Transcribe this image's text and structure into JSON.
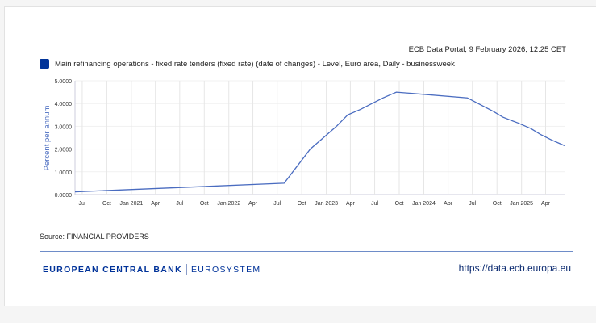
{
  "header": {
    "timestamp": "ECB Data Portal, 9 February 2026, 12:25 CET"
  },
  "colors": {
    "series": "#4a6cc0",
    "legend_swatch": "#003399",
    "brand": "#003299"
  },
  "chart_data": {
    "type": "line",
    "title": "",
    "xlabel": "",
    "ylabel": "Percent per annum",
    "legend_position": "top-left",
    "grid": {
      "vertical": true,
      "horizontal": true
    },
    "ylim": [
      0,
      5
    ],
    "xlim": [
      "2020-06-04",
      "2025-06-11"
    ],
    "y_ticks": [
      "0.0000",
      "1.0000",
      "2.0000",
      "3.0000",
      "4.0000",
      "5.0000"
    ],
    "x_ticks": [
      {
        "date": "2020-07-01",
        "label": "Jul"
      },
      {
        "date": "2020-10-01",
        "label": "Oct"
      },
      {
        "date": "2021-01-01",
        "label": "Jan 2021"
      },
      {
        "date": "2021-04-01",
        "label": "Apr"
      },
      {
        "date": "2021-07-01",
        "label": "Jul"
      },
      {
        "date": "2021-10-01",
        "label": "Oct"
      },
      {
        "date": "2022-01-01",
        "label": "Jan 2022"
      },
      {
        "date": "2022-04-01",
        "label": "Apr"
      },
      {
        "date": "2022-07-01",
        "label": "Jul"
      },
      {
        "date": "2022-10-01",
        "label": "Oct"
      },
      {
        "date": "2023-01-01",
        "label": "Jan 2023"
      },
      {
        "date": "2023-04-01",
        "label": "Apr"
      },
      {
        "date": "2023-07-01",
        "label": "Jul"
      },
      {
        "date": "2023-10-01",
        "label": "Oct"
      },
      {
        "date": "2024-01-01",
        "label": "Jan 2024"
      },
      {
        "date": "2024-04-01",
        "label": "Apr"
      },
      {
        "date": "2024-07-01",
        "label": "Jul"
      },
      {
        "date": "2024-10-01",
        "label": "Oct"
      },
      {
        "date": "2025-01-01",
        "label": "Jan 2025"
      },
      {
        "date": "2025-04-01",
        "label": "Apr"
      }
    ],
    "series": [
      {
        "name": "Main refinancing operations - fixed rate tenders (fixed rate) (date of changes) - Level, Euro area, Daily - businessweek",
        "x": [
          "2020-06-04",
          "2022-07-27",
          "2022-11-02",
          "2022-12-21",
          "2023-02-08",
          "2023-03-22",
          "2023-05-10",
          "2023-06-21",
          "2023-08-02",
          "2023-09-20",
          "2024-06-12",
          "2024-09-18",
          "2024-10-23",
          "2024-12-18",
          "2025-02-05",
          "2025-03-12",
          "2025-04-23",
          "2025-06-11"
        ],
        "y": [
          0.12,
          0.5,
          2.0,
          2.5,
          3.0,
          3.5,
          3.75,
          4.0,
          4.25,
          4.5,
          4.25,
          3.65,
          3.4,
          3.15,
          2.9,
          2.65,
          2.4,
          2.15
        ]
      }
    ]
  },
  "footer": {
    "source": "Source: FINANCIAL PROVIDERS",
    "brand_main": "EUROPEAN CENTRAL BANK",
    "brand_sub": "EUROSYSTEM",
    "url": "https://data.ecb.europa.eu"
  }
}
